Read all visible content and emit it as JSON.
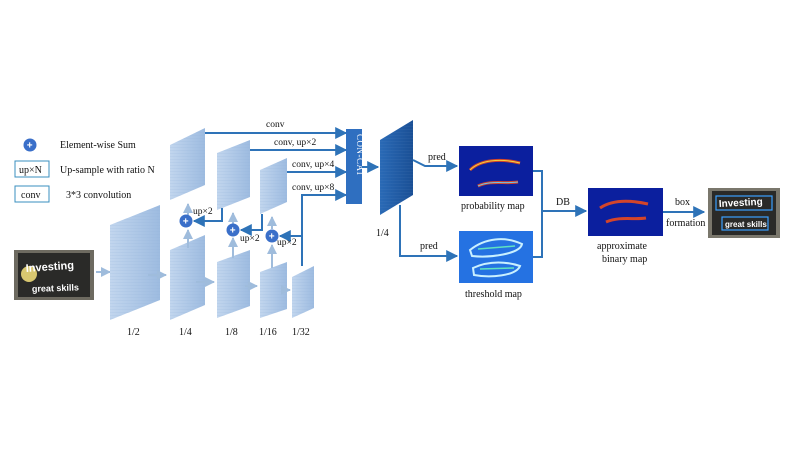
{
  "legend": {
    "sum": "Element-wise Sum",
    "up_box": "up×N",
    "up_desc": "Up-sample with ratio N",
    "conv_box": "conv",
    "conv_desc": "3*3 convolution"
  },
  "scales": {
    "s2": "1/2",
    "s4": "1/4",
    "s8": "1/8",
    "s16": "1/16",
    "s32": "1/32",
    "concat_scale": "1/4"
  },
  "ops": {
    "conv": "conv",
    "conv_up2": "conv, up×2",
    "conv_up4": "conv, up×4",
    "conv_up8": "conv, up×8",
    "up2_a": "up×2",
    "up2_b": "up×2",
    "up2_c": "up×2",
    "concat": "CON-CAT",
    "pred_prob": "pred",
    "pred_thresh": "pred",
    "db": "DB",
    "box": "box",
    "formation": "formation",
    "plus": "+"
  },
  "maps": {
    "probability": "probability map",
    "threshold": "threshold map",
    "approx_1": "approximate",
    "approx_2": "binary map"
  },
  "input_image": {
    "line1": "Investing",
    "line2": "great skills"
  },
  "output_image": {
    "line1": "Investing",
    "line2": "great skills"
  },
  "colors": {
    "arrow": "#2e73b8",
    "block_face": "#a9c5e6",
    "block_side": "#7ea7d4",
    "concat_block": "#2f6fc0",
    "feature_dark": "#1f5ea8",
    "map_bg": "#0b1f9e",
    "sum_circle": "#3a6fc9"
  }
}
